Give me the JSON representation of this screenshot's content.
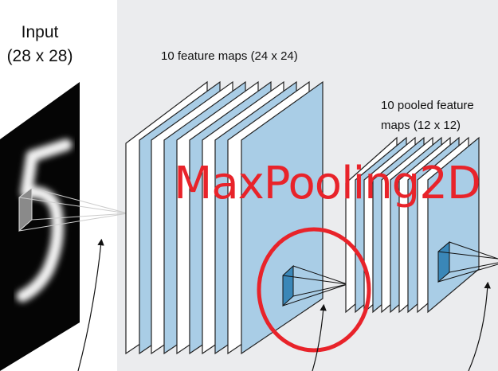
{
  "input": {
    "title": "Input",
    "size": "(28 x 28)",
    "digit": "5"
  },
  "feature_maps": {
    "label": "10 feature maps (24 x 24)"
  },
  "pooled_maps": {
    "label_line1": "10 pooled feature",
    "label_line2": "maps (12 x 12)"
  },
  "overlay": {
    "text": "MaxPooling2D",
    "color": "#e8232a"
  },
  "colors": {
    "panel_bg": "#ebecee",
    "map_blue": "#a9cde6",
    "receptive_blue": "#3a87b8",
    "highlight_red": "#e8232a"
  }
}
